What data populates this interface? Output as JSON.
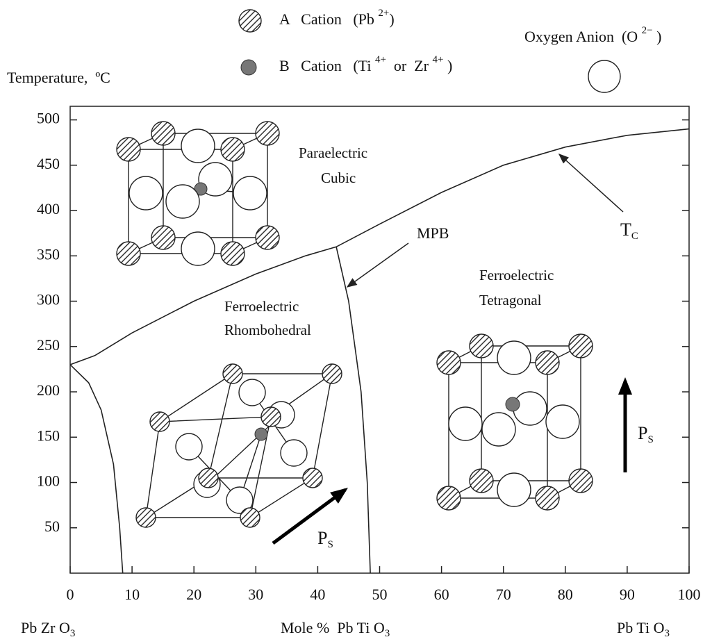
{
  "chart_data": {
    "type": "line",
    "y_label": "Temperature,  ºC",
    "x_labels": [
      {
        "text": "Pb Zr O",
        "sub": "3"
      },
      {
        "text": "Mole %  Pb Ti O",
        "sub": "3"
      },
      {
        "text": "Pb Ti O",
        "sub": "3"
      }
    ],
    "legend": [
      {
        "label": "A   Cation   (Pb ",
        "sup": "2+",
        "end": ")"
      },
      {
        "label": "B   Cation   (Ti ",
        "sup": "4+",
        "mid": "  or  Zr ",
        "sup2": "4+",
        "end": " )"
      },
      {
        "label": "Oxygen Anion  (O ",
        "sup": "2−",
        "end": " )"
      }
    ],
    "annotations": [
      "Paraelectric",
      "Cubic",
      "MPB",
      "T",
      "C",
      "Ferroelectric",
      "Rhombohedral",
      "Ferroelectric",
      "Tetragonal",
      "P",
      "S",
      "P",
      "S"
    ],
    "series": [
      {
        "color": "#222222",
        "x": [
          0,
          4,
          10,
          20,
          30,
          38,
          43,
          50,
          60,
          70,
          80,
          90,
          100
        ],
        "values": [
          230,
          240,
          265,
          300,
          330,
          350,
          360,
          385,
          420,
          450,
          470,
          483,
          490
        ]
      },
      {
        "color": "#222222",
        "x": [
          43,
          44,
          45,
          46,
          47,
          48,
          48.5
        ],
        "values": [
          360,
          330,
          300,
          250,
          200,
          100,
          0
        ]
      },
      {
        "color": "#222222",
        "x": [
          0,
          3,
          5,
          7,
          8,
          8.5
        ],
        "values": [
          230,
          210,
          180,
          120,
          50,
          0
        ]
      }
    ],
    "xlim": [
      0,
      100
    ],
    "ylim": [
      0,
      515
    ],
    "xticks": [
      0,
      10,
      20,
      30,
      40,
      50,
      60,
      70,
      80,
      90,
      100
    ],
    "yticks": [
      50,
      100,
      150,
      200,
      250,
      300,
      350,
      400,
      450,
      500
    ]
  }
}
